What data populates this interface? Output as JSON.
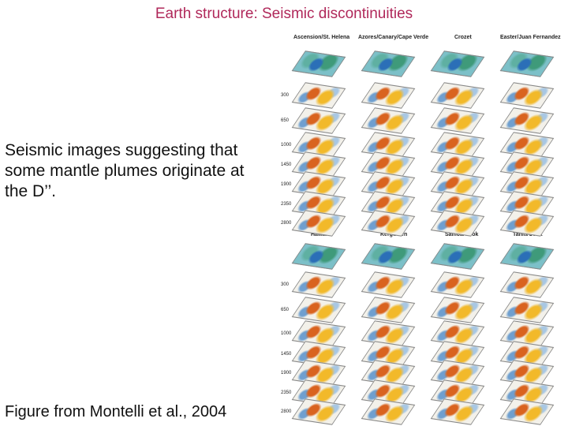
{
  "title": "Earth structure: Seismic discontinuities",
  "caption": "Seismic images suggesting that some mantle plumes originate at the D’’.",
  "credit": "Figure from Montelli et al., 2004",
  "figure": {
    "top_panels": [
      "Ascension/St. Helena",
      "Azores/Canary/Cape Verde",
      "Crozet",
      "Easter/Juan Fernandez"
    ],
    "bottom_panels": [
      "Hawaii",
      "Kerguelen",
      "Samoa/Cook",
      "Tahiti/Cook"
    ],
    "depths": [
      "300",
      "650",
      "1000",
      "1450",
      "1900",
      "2350",
      "2800"
    ]
  }
}
